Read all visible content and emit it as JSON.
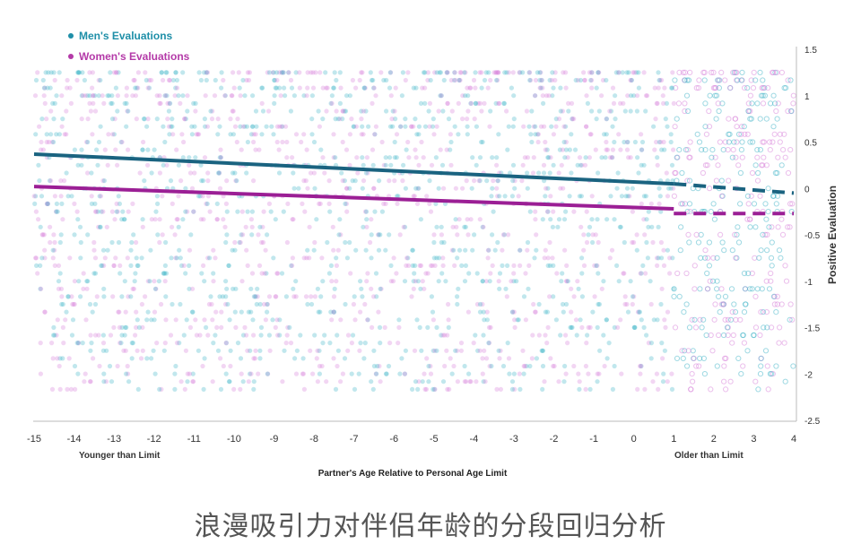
{
  "caption": "浪漫吸引力对伴侣年龄的分段回归分析",
  "chart_data": {
    "type": "scatter",
    "xlabel": "Partner's Age Relative to Personal Age Limit",
    "ylabel": "Positive Evaluation",
    "xlim": [
      -15,
      4
    ],
    "ylim": [
      -2.5,
      1.5
    ],
    "x_ticks": [
      "-15",
      "-14",
      "-13",
      "-12",
      "-11",
      "-10",
      "-9",
      "-8",
      "-7",
      "-6",
      "-5",
      "-4",
      "-3",
      "-2",
      "-1",
      "0",
      "1",
      "2",
      "3",
      "4"
    ],
    "y_ticks": [
      "1.5",
      "1",
      "0.5",
      "0",
      "-0.5",
      "-1",
      "-1.5",
      "-2",
      "-2.5"
    ],
    "left_note": "Younger than Limit",
    "right_note": "Older than Limit",
    "legend_position": "top-left",
    "grid": false,
    "series": [
      {
        "name": "Men's Evaluations",
        "color": "#1f8fa8",
        "trend_solid": {
          "x": [
            -15,
            1
          ],
          "y": [
            0.37,
            0.05
          ]
        },
        "trend_dashed": {
          "x": [
            1,
            4
          ],
          "y": [
            0.05,
            -0.05
          ]
        }
      },
      {
        "name": "Women's Evaluations",
        "color": "#b43aa8",
        "trend_solid": {
          "x": [
            -15,
            1
          ],
          "y": [
            0.02,
            -0.22
          ]
        },
        "trend_dashed": {
          "x": [
            1,
            4
          ],
          "y": [
            -0.27,
            -0.27
          ]
        }
      }
    ]
  },
  "colors": {
    "men_point": "#3fb3c8",
    "women_point": "#d77fd9",
    "men_line": "#1a6380",
    "women_line": "#9b1f95"
  }
}
